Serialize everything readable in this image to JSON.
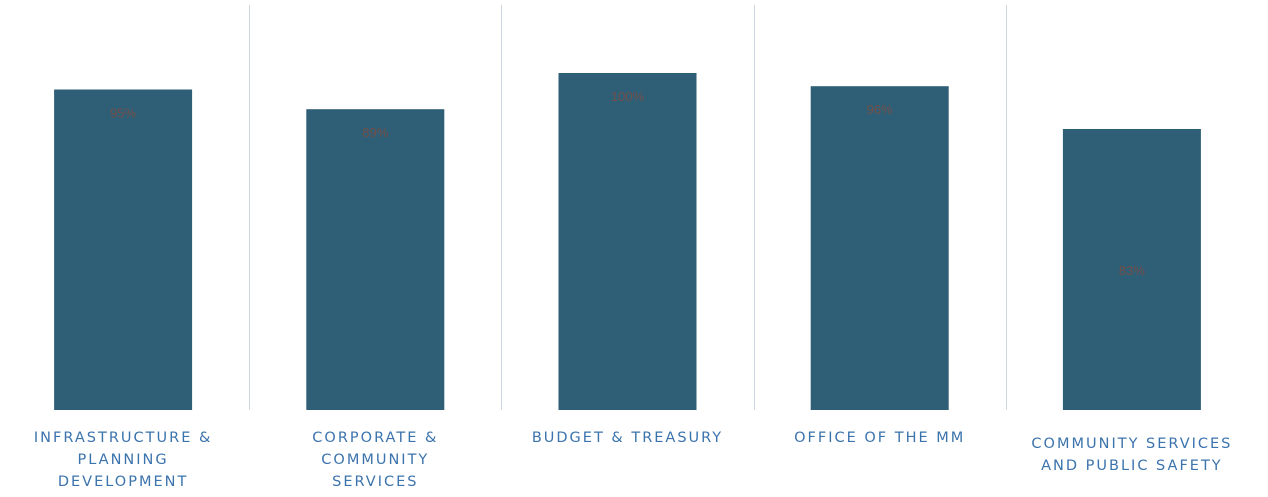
{
  "chart_data": {
    "type": "bar",
    "categories": [
      [
        "INFRASTRUCTURE &",
        "PLANNING",
        "DEVELOPMENT"
      ],
      [
        "CORPORATE &",
        "COMMUNITY",
        "SERVICES"
      ],
      [
        "BUDGET & TREASURY"
      ],
      [
        "OFFICE OF THE MM"
      ],
      [
        "COMMUNITY SERVICES",
        "AND PUBLIC SAFETY"
      ]
    ],
    "values": [
      95,
      89,
      100,
      96,
      83
    ],
    "data_labels": [
      "95%",
      "89%",
      "100%",
      "96%",
      "83%"
    ],
    "ylim": [
      0,
      100
    ],
    "grid": false,
    "legend": "none",
    "colors": {
      "bar": "#2f5f76",
      "category_text": "#3b73ad",
      "separator": "#cdd6e1"
    }
  }
}
